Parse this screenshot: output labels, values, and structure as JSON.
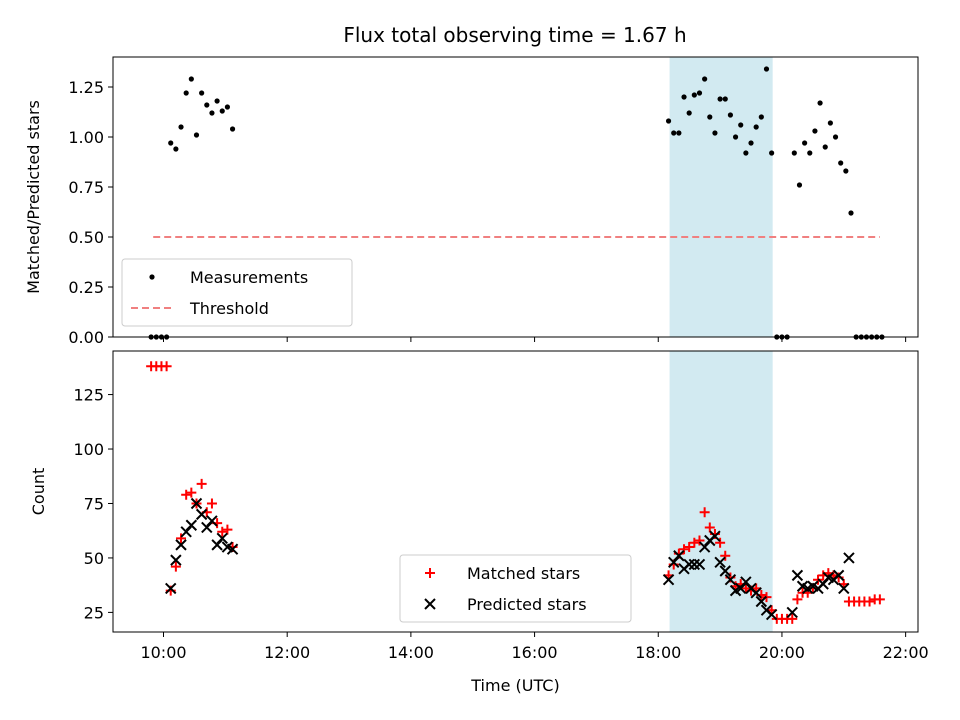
{
  "title": "Flux total observing time = 1.67 h",
  "colors": {
    "measurement": "#000000",
    "threshold": "#f08080",
    "matched": "#ff0000",
    "predicted": "#000000",
    "highlight": "#add8e6"
  },
  "chart_data": [
    {
      "type": "scatter",
      "ylabel": "Matched/Predicted stars",
      "ylim": [
        0,
        1.4
      ],
      "yticks": [
        "0.00",
        "0.25",
        "0.50",
        "0.75",
        "1.00",
        "1.25"
      ],
      "xlim": [
        "09:11",
        "22:12"
      ],
      "highlight_span": [
        "18:11",
        "19:51"
      ],
      "legend": {
        "placement": "lower-left",
        "entries": [
          "Measurements",
          "Threshold"
        ]
      },
      "threshold": {
        "x": [
          "09:50",
          "21:35"
        ],
        "y": 0.5
      },
      "series": [
        {
          "name": "Measurements",
          "marker": "dot",
          "points": [
            [
              "09:48",
              0.0
            ],
            [
              "09:53",
              0.0
            ],
            [
              "09:58",
              0.0
            ],
            [
              "10:03",
              0.0
            ],
            [
              "10:07",
              0.97
            ],
            [
              "10:12",
              0.94
            ],
            [
              "10:17",
              1.05
            ],
            [
              "10:22",
              1.22
            ],
            [
              "10:27",
              1.29
            ],
            [
              "10:32",
              1.01
            ],
            [
              "10:37",
              1.22
            ],
            [
              "10:42",
              1.16
            ],
            [
              "10:47",
              1.12
            ],
            [
              "10:52",
              1.18
            ],
            [
              "10:57",
              1.13
            ],
            [
              "11:02",
              1.15
            ],
            [
              "11:07",
              1.04
            ],
            [
              "18:10",
              1.08
            ],
            [
              "18:15",
              1.02
            ],
            [
              "18:20",
              1.02
            ],
            [
              "18:25",
              1.2
            ],
            [
              "18:30",
              1.12
            ],
            [
              "18:35",
              1.21
            ],
            [
              "18:40",
              1.22
            ],
            [
              "18:45",
              1.29
            ],
            [
              "18:50",
              1.1
            ],
            [
              "18:55",
              1.02
            ],
            [
              "19:00",
              1.19
            ],
            [
              "19:05",
              1.19
            ],
            [
              "19:10",
              1.11
            ],
            [
              "19:15",
              1.0
            ],
            [
              "19:20",
              1.06
            ],
            [
              "19:25",
              0.92
            ],
            [
              "19:30",
              0.97
            ],
            [
              "19:35",
              1.05
            ],
            [
              "19:40",
              1.1
            ],
            [
              "19:45",
              1.34
            ],
            [
              "19:50",
              0.92
            ],
            [
              "19:55",
              0.0
            ],
            [
              "20:00",
              0.0
            ],
            [
              "20:05",
              0.0
            ],
            [
              "20:12",
              0.92
            ],
            [
              "20:17",
              0.76
            ],
            [
              "20:22",
              0.97
            ],
            [
              "20:27",
              0.92
            ],
            [
              "20:32",
              1.03
            ],
            [
              "20:37",
              1.17
            ],
            [
              "20:42",
              0.95
            ],
            [
              "20:47",
              1.07
            ],
            [
              "20:52",
              1.0
            ],
            [
              "20:57",
              0.87
            ],
            [
              "21:02",
              0.83
            ],
            [
              "21:07",
              0.62
            ],
            [
              "21:12",
              0.0
            ],
            [
              "21:17",
              0.0
            ],
            [
              "21:22",
              0.0
            ],
            [
              "21:27",
              0.0
            ],
            [
              "21:32",
              0.0
            ],
            [
              "21:37",
              0.0
            ]
          ]
        }
      ]
    },
    {
      "type": "scatter",
      "xlabel": "Time (UTC)",
      "ylabel": "Count",
      "ylim": [
        16,
        145
      ],
      "yticks": [
        "25",
        "50",
        "75",
        "100",
        "125"
      ],
      "xlim": [
        "09:11",
        "22:12"
      ],
      "xticks": [
        "10:00",
        "12:00",
        "14:00",
        "16:00",
        "18:00",
        "20:00",
        "22:00"
      ],
      "highlight_span": [
        "18:11",
        "19:51"
      ],
      "legend": {
        "placement": "lower-center",
        "entries": [
          "Matched stars",
          "Predicted stars"
        ]
      },
      "series": [
        {
          "name": "Matched stars",
          "marker": "plus",
          "points": [
            [
              "09:48",
              138
            ],
            [
              "09:53",
              138
            ],
            [
              "09:58",
              138
            ],
            [
              "10:03",
              138
            ],
            [
              "10:07",
              35
            ],
            [
              "10:12",
              46
            ],
            [
              "10:17",
              59
            ],
            [
              "10:22",
              79
            ],
            [
              "10:27",
              80
            ],
            [
              "10:32",
              75
            ],
            [
              "10:37",
              84
            ],
            [
              "10:42",
              71
            ],
            [
              "10:47",
              75
            ],
            [
              "10:52",
              66
            ],
            [
              "10:57",
              62
            ],
            [
              "11:02",
              63
            ],
            [
              "11:07",
              55
            ],
            [
              "18:10",
              42
            ],
            [
              "18:15",
              47
            ],
            [
              "18:20",
              52
            ],
            [
              "18:25",
              54
            ],
            [
              "18:30",
              55
            ],
            [
              "18:35",
              57
            ],
            [
              "18:40",
              58
            ],
            [
              "18:45",
              71
            ],
            [
              "18:50",
              64
            ],
            [
              "18:55",
              61
            ],
            [
              "19:00",
              57
            ],
            [
              "19:05",
              51
            ],
            [
              "19:10",
              41
            ],
            [
              "19:15",
              37
            ],
            [
              "19:20",
              38
            ],
            [
              "19:25",
              36
            ],
            [
              "19:30",
              35
            ],
            [
              "19:35",
              36
            ],
            [
              "19:40",
              33
            ],
            [
              "19:45",
              32
            ],
            [
              "19:50",
              26
            ],
            [
              "19:55",
              22
            ],
            [
              "20:00",
              22
            ],
            [
              "20:05",
              22
            ],
            [
              "20:10",
              22
            ],
            [
              "20:15",
              31
            ],
            [
              "20:20",
              34
            ],
            [
              "20:25",
              34
            ],
            [
              "20:30",
              36
            ],
            [
              "20:35",
              40
            ],
            [
              "20:40",
              42
            ],
            [
              "20:45",
              43
            ],
            [
              "20:50",
              42
            ],
            [
              "20:55",
              41
            ],
            [
              "21:00",
              38
            ],
            [
              "21:05",
              30
            ],
            [
              "21:10",
              30
            ],
            [
              "21:15",
              30
            ],
            [
              "21:20",
              30
            ],
            [
              "21:25",
              30
            ],
            [
              "21:30",
              31
            ],
            [
              "21:35",
              31
            ]
          ]
        },
        {
          "name": "Predicted stars",
          "marker": "cross",
          "points": [
            [
              "10:07",
              36
            ],
            [
              "10:12",
              49
            ],
            [
              "10:17",
              56
            ],
            [
              "10:22",
              62
            ],
            [
              "10:27",
              65
            ],
            [
              "10:32",
              75
            ],
            [
              "10:37",
              70
            ],
            [
              "10:42",
              64
            ],
            [
              "10:47",
              67
            ],
            [
              "10:52",
              56
            ],
            [
              "10:57",
              59
            ],
            [
              "11:02",
              55
            ],
            [
              "11:07",
              54
            ],
            [
              "18:10",
              40
            ],
            [
              "18:15",
              48
            ],
            [
              "18:20",
              51
            ],
            [
              "18:25",
              45
            ],
            [
              "18:30",
              47
            ],
            [
              "18:35",
              47
            ],
            [
              "18:40",
              47
            ],
            [
              "18:45",
              55
            ],
            [
              "18:50",
              58
            ],
            [
              "18:55",
              60
            ],
            [
              "19:00",
              48
            ],
            [
              "19:05",
              44
            ],
            [
              "19:10",
              40
            ],
            [
              "19:15",
              35
            ],
            [
              "19:20",
              36
            ],
            [
              "19:25",
              39
            ],
            [
              "19:30",
              36
            ],
            [
              "19:35",
              34
            ],
            [
              "19:40",
              30
            ],
            [
              "19:45",
              26
            ],
            [
              "19:50",
              24
            ],
            [
              "20:10",
              25
            ],
            [
              "20:15",
              42
            ],
            [
              "20:20",
              37
            ],
            [
              "20:25",
              36
            ],
            [
              "20:30",
              37
            ],
            [
              "20:35",
              36
            ],
            [
              "20:40",
              38
            ],
            [
              "20:45",
              41
            ],
            [
              "20:50",
              40
            ],
            [
              "20:55",
              42
            ],
            [
              "21:00",
              36
            ],
            [
              "21:05",
              50
            ]
          ]
        }
      ]
    }
  ]
}
